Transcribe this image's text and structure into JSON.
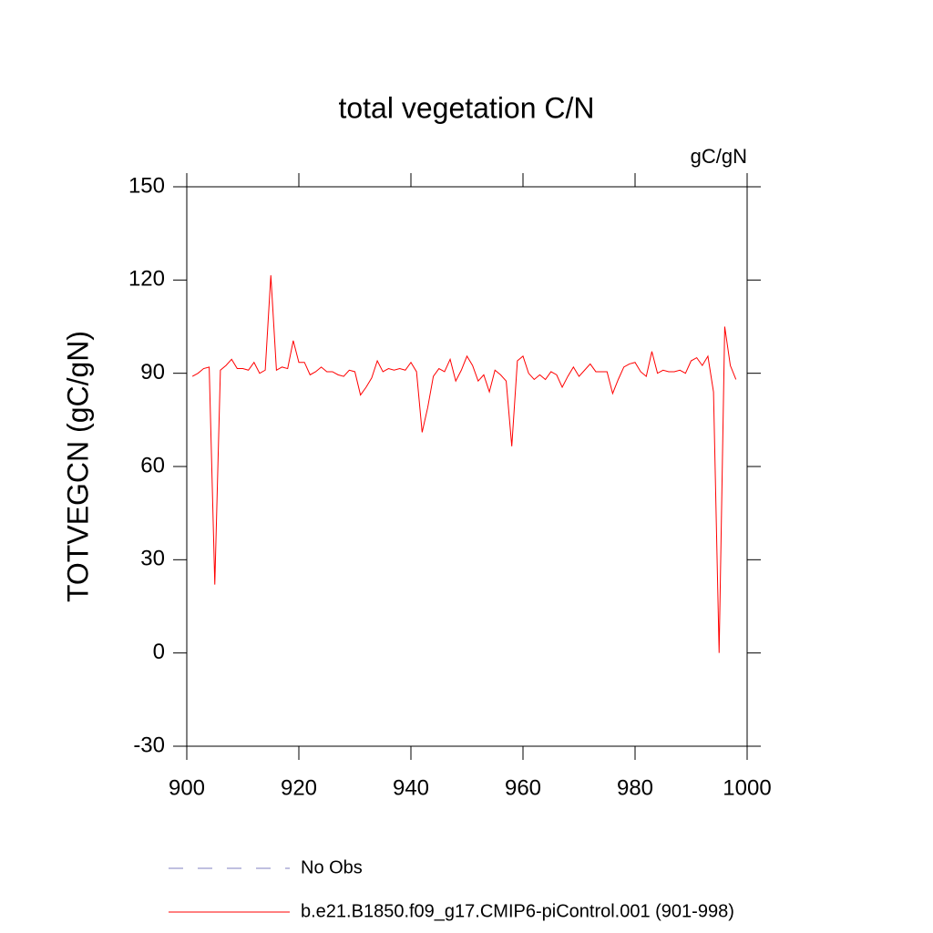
{
  "chart_data": {
    "type": "line",
    "title": "total vegetation C/N",
    "units": "gC/gN",
    "y_label": "TOTVEGCN  (gC/gN)",
    "x": [
      901,
      902,
      903,
      904,
      905,
      906,
      907,
      908,
      909,
      910,
      911,
      912,
      913,
      914,
      915,
      916,
      917,
      918,
      919,
      920,
      921,
      922,
      923,
      924,
      925,
      926,
      927,
      928,
      929,
      930,
      931,
      932,
      933,
      934,
      935,
      936,
      937,
      938,
      939,
      940,
      941,
      942,
      943,
      944,
      945,
      946,
      947,
      948,
      949,
      950,
      951,
      952,
      953,
      954,
      955,
      956,
      957,
      958,
      959,
      960,
      961,
      962,
      963,
      964,
      965,
      966,
      967,
      968,
      969,
      970,
      971,
      972,
      973,
      974,
      975,
      976,
      977,
      978,
      979,
      980,
      981,
      982,
      983,
      984,
      985,
      986,
      987,
      988,
      989,
      990,
      991,
      992,
      993,
      994,
      995,
      996,
      997,
      998
    ],
    "values": [
      89,
      90,
      91.5,
      92,
      22,
      91,
      92.5,
      94.5,
      91.5,
      91.5,
      91,
      93.5,
      90,
      91,
      121.5,
      91,
      92,
      91.5,
      100.5,
      93.5,
      93.5,
      89.5,
      90.5,
      92,
      90.5,
      90.5,
      89.5,
      89,
      91,
      90.5,
      83,
      85.5,
      88.5,
      94,
      90.5,
      91.5,
      91,
      91.5,
      91,
      93.5,
      90.5,
      71,
      79,
      89,
      91.5,
      90.5,
      94.5,
      87.5,
      91,
      95.5,
      92.5,
      87.5,
      89.5,
      84,
      91,
      89.5,
      87.5,
      66.5,
      94,
      95.5,
      90,
      88,
      89.5,
      88,
      90.5,
      89.5,
      85.5,
      89,
      92,
      89,
      91,
      93,
      90.5,
      90.5,
      90.5,
      83.5,
      88,
      92,
      93,
      93.5,
      90.5,
      89,
      97,
      90,
      91,
      90.5,
      90.5,
      91,
      90,
      94,
      95,
      92.5,
      95.5,
      84,
      0,
      105,
      92.5,
      88
    ],
    "color": "#ff0000",
    "xlim": [
      900,
      1000
    ],
    "xticks": [
      900,
      920,
      940,
      960,
      980,
      1000
    ],
    "ylim": [
      -30,
      150
    ],
    "yticks": [
      -30,
      0,
      30,
      60,
      90,
      120,
      150
    ],
    "legend": [
      {
        "label": "No Obs",
        "color": "#8080c0",
        "style": "dashed"
      },
      {
        "label": "b.e21.B1850.f09_g17.CMIP6-piControl.001 (901-998)",
        "color": "#ff0000",
        "style": "solid"
      }
    ]
  }
}
